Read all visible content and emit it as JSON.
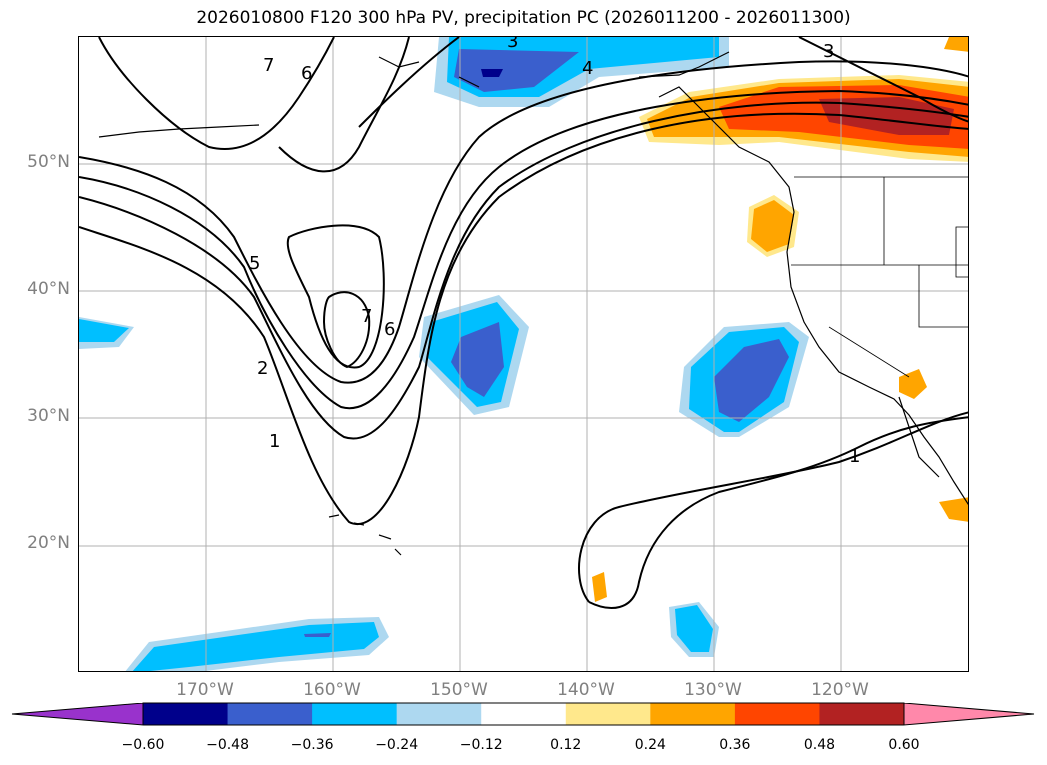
{
  "title": "2026010800 F120 300 hPa PV, precipitation PC (2026011200 - 2026011300)",
  "map": {
    "lat_labels": [
      "50°N",
      "40°N",
      "30°N",
      "20°N"
    ],
    "lon_labels": [
      "170°W",
      "160°W",
      "150°W",
      "140°W",
      "130°W",
      "120°W"
    ],
    "contour_labels": [
      "1",
      "2",
      "5",
      "6",
      "7",
      "3",
      "4",
      "6",
      "7",
      "1",
      "3"
    ]
  },
  "colorbar": {
    "tick_labels": [
      "−0.60",
      "−0.48",
      "−0.36",
      "−0.24",
      "−0.12",
      "0.12",
      "0.24",
      "0.36",
      "0.48",
      "0.60"
    ],
    "colors": [
      "#9932cc",
      "#00008b",
      "#3a5fcd",
      "#00bfff",
      "#add8f0",
      "#ffffff",
      "#ffe88c",
      "#ffa500",
      "#ff4500",
      "#b22222",
      "#ff88aa"
    ]
  }
}
